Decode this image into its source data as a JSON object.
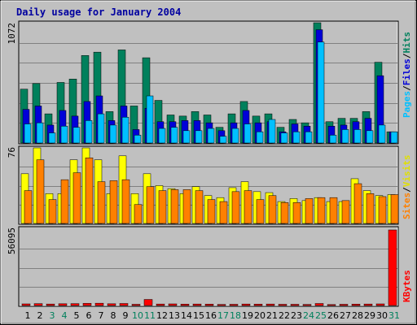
{
  "title": "Daily usage for January 2004",
  "colors": {
    "background": "#c0c0c0",
    "hits": "#00805c",
    "files": "#0000d8",
    "pages": "#00c0ff",
    "visits": "#ffff00",
    "sites": "#ff8000",
    "kbytes": "#ff0000",
    "title": "#0000a0",
    "weekend": "#00805c",
    "weekday": "#000000"
  },
  "chart_data": [
    {
      "type": "bar",
      "panel": "hits-files-pages",
      "ymax_label": "1072",
      "ylim": [
        0,
        1072
      ],
      "legend": [
        "Pages",
        "/",
        "Files",
        "/",
        "Hits"
      ],
      "series": [
        {
          "name": "Hits",
          "values": [
            480,
            530,
            260,
            540,
            570,
            780,
            810,
            280,
            830,
            330,
            760,
            380,
            250,
            240,
            280,
            250,
            140,
            260,
            370,
            240,
            260,
            140,
            210,
            180,
            1072,
            190,
            220,
            220,
            280,
            720,
            100
          ]
        },
        {
          "name": "Files",
          "values": [
            300,
            330,
            160,
            290,
            240,
            370,
            420,
            200,
            330,
            120,
            310,
            190,
            190,
            200,
            200,
            180,
            110,
            180,
            290,
            180,
            190,
            100,
            170,
            150,
            1010,
            150,
            160,
            190,
            220,
            600,
            100
          ]
        },
        {
          "name": "Pages",
          "values": [
            170,
            180,
            90,
            150,
            140,
            200,
            260,
            160,
            230,
            70,
            420,
            130,
            140,
            110,
            110,
            130,
            60,
            130,
            170,
            100,
            210,
            90,
            100,
            100,
            900,
            70,
            120,
            120,
            110,
            160,
            100
          ]
        }
      ]
    },
    {
      "type": "bar",
      "panel": "visits-sites",
      "ymax_label": "76",
      "ylim": [
        0,
        76
      ],
      "legend": [
        "Sites",
        "/",
        "Visits"
      ],
      "series": [
        {
          "name": "Visits",
          "values": [
            50,
            76,
            30,
            30,
            64,
            76,
            64,
            30,
            68,
            30,
            50,
            38,
            35,
            30,
            37,
            28,
            26,
            36,
            42,
            32,
            31,
            22,
            25,
            23,
            26,
            22,
            22,
            45,
            33,
            28,
            29
          ]
        },
        {
          "name": "Sites",
          "values": [
            33,
            64,
            24,
            44,
            51,
            66,
            42,
            43,
            44,
            19,
            37,
            33,
            34,
            34,
            33,
            24,
            22,
            32,
            33,
            24,
            28,
            21,
            21,
            25,
            26,
            26,
            23,
            40,
            30,
            27,
            29
          ]
        }
      ]
    },
    {
      "type": "bar",
      "panel": "kbytes",
      "ymax_label": "56095",
      "ylim": [
        0,
        56095
      ],
      "legend": [
        "KBytes"
      ],
      "series": [
        {
          "name": "KBytes",
          "values": [
            1200,
            1400,
            1100,
            1300,
            1400,
            1600,
            1700,
            1300,
            1500,
            900,
            4500,
            1100,
            1200,
            1000,
            1100,
            1000,
            800,
            900,
            1100,
            1000,
            1100,
            900,
            900,
            800,
            1500,
            700,
            900,
            1000,
            1100,
            1200,
            56095
          ]
        }
      ]
    }
  ],
  "x_axis": {
    "days": [
      "1",
      "2",
      "3",
      "4",
      "5",
      "6",
      "7",
      "8",
      "9",
      "10",
      "11",
      "12",
      "13",
      "14",
      "15",
      "16",
      "17",
      "18",
      "19",
      "20",
      "21",
      "22",
      "23",
      "24",
      "25",
      "26",
      "27",
      "28",
      "29",
      "30",
      "31"
    ],
    "weekend_days": [
      "3",
      "4",
      "10",
      "11",
      "17",
      "18",
      "24",
      "25",
      "31"
    ]
  }
}
